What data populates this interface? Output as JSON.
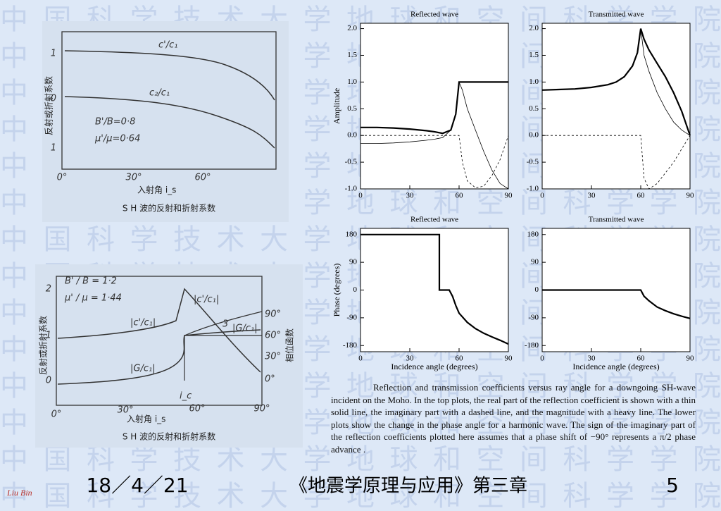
{
  "watermark": "中国科学技术大学地球和空间科学学院",
  "left_figures": [
    {
      "ylabel": "反射或折射系数",
      "yticks": [
        "1",
        "0",
        "1"
      ],
      "xticks": [
        "0°",
        "30°",
        "60°"
      ],
      "xlabel": "入射角 i_s",
      "curve_labels": [
        "c'/c₁",
        "c₂/c₁"
      ],
      "params": [
        "B'/B=0·8",
        "μ'/μ=0·64"
      ],
      "caption": "S H 波的反射和折射系数"
    },
    {
      "ylabel": "反射或折射系数",
      "y2label": "相位函数",
      "yticks": [
        "2",
        "1",
        "0"
      ],
      "y2ticks": [
        "90°",
        "60°",
        "30°",
        "0°"
      ],
      "xticks": [
        "0°",
        "30°",
        "60°",
        "90°"
      ],
      "xlabel": "入射角 i_s",
      "curve_labels": [
        "|c'/c₁|",
        "|c'/c₁|",
        "|G/c₁|",
        "|G/c₁|",
        "3",
        "i_c"
      ],
      "params": [
        "B' / B = 1·2",
        "μ' / μ = 1·44"
      ],
      "caption": "S H 波的反射和折射系数"
    }
  ],
  "chart_data": [
    {
      "type": "line",
      "title": "Reflected wave",
      "ylabel": "Amplitude",
      "x": [
        0,
        10,
        20,
        30,
        40,
        45,
        50,
        55,
        58,
        60,
        62,
        65,
        70,
        75,
        80,
        85,
        90
      ],
      "series": [
        {
          "style": "heavy",
          "color": "#000000",
          "values": [
            0.15,
            0.15,
            0.14,
            0.12,
            0.09,
            0.07,
            0.04,
            0.1,
            0.4,
            1,
            1,
            1,
            1,
            1,
            1,
            1,
            1
          ]
        },
        {
          "style": "thin",
          "color": "#000000",
          "values": [
            -0.15,
            -0.15,
            -0.14,
            -0.12,
            -0.09,
            -0.07,
            -0.04,
            0.1,
            0.4,
            1,
            0.85,
            0.5,
            0.1,
            -0.3,
            -0.65,
            -0.9,
            -1
          ]
        },
        {
          "style": "dashed",
          "color": "#000000",
          "values": [
            0,
            0,
            0,
            0,
            0,
            0,
            0,
            0,
            0,
            0,
            -0.5,
            -0.85,
            -0.98,
            -0.95,
            -0.75,
            -0.45,
            0
          ]
        }
      ],
      "xlim": [
        0,
        90
      ],
      "xticks": [
        0,
        30,
        60,
        90
      ],
      "ylim": [
        -1,
        2.1
      ],
      "yticks": [
        {
          "value": -1,
          "label": "-1.0"
        },
        {
          "value": -0.5,
          "label": "-0.5"
        },
        {
          "value": 0,
          "label": "0.0"
        },
        {
          "value": 0.5,
          "label": "0.5"
        },
        {
          "value": 1,
          "label": "1.0"
        },
        {
          "value": 1.5,
          "label": "1.5"
        },
        {
          "value": 2,
          "label": "2.0"
        }
      ]
    },
    {
      "type": "line",
      "title": "Transmitted wave",
      "x": [
        0,
        10,
        20,
        30,
        40,
        45,
        50,
        55,
        58,
        60,
        62,
        65,
        70,
        75,
        80,
        85,
        90
      ],
      "series": [
        {
          "style": "heavy",
          "color": "#000000",
          "values": [
            0.85,
            0.86,
            0.87,
            0.9,
            0.95,
            1.0,
            1.1,
            1.3,
            1.55,
            2.0,
            1.8,
            1.6,
            1.35,
            1.1,
            0.8,
            0.45,
            0
          ]
        },
        {
          "style": "thin",
          "color": "#000000",
          "values": [
            0.85,
            0.86,
            0.87,
            0.9,
            0.95,
            1.0,
            1.1,
            1.3,
            1.55,
            2.0,
            1.5,
            1.2,
            0.8,
            0.5,
            0.25,
            0.1,
            0
          ]
        },
        {
          "style": "dashed",
          "color": "#000000",
          "values": [
            0,
            0,
            0,
            0,
            0,
            0,
            0,
            0,
            0,
            0,
            -0.8,
            -1.0,
            -0.9,
            -0.7,
            -0.5,
            -0.25,
            0
          ]
        }
      ],
      "xlim": [
        0,
        90
      ],
      "xticks": [
        0,
        30,
        60,
        90
      ],
      "ylim": [
        -1,
        2.1
      ],
      "yticks": [
        {
          "value": -1,
          "label": "-1.0"
        },
        {
          "value": -0.5,
          "label": "-0.5"
        },
        {
          "value": 0,
          "label": "0.0"
        },
        {
          "value": 0.5,
          "label": "0.5"
        },
        {
          "value": 1,
          "label": "1.0"
        },
        {
          "value": 1.5,
          "label": "1.5"
        },
        {
          "value": 2,
          "label": "2.0"
        }
      ]
    },
    {
      "type": "line",
      "title": "Reflected wave",
      "ylabel": "Phase (degrees)",
      "xlabel": "Incidence angle (degrees)",
      "x": [
        0,
        10,
        20,
        30,
        40,
        48,
        48,
        50,
        54,
        56,
        58,
        60,
        65,
        70,
        75,
        80,
        85,
        90
      ],
      "series": [
        {
          "style": "heavy",
          "color": "#000000",
          "values": [
            180,
            180,
            180,
            180,
            180,
            180,
            0,
            0,
            0,
            -20,
            -50,
            -75,
            -105,
            -125,
            -140,
            -152,
            -163,
            -175
          ]
        }
      ],
      "xlim": [
        0,
        90
      ],
      "xticks": [
        0,
        30,
        60,
        90
      ],
      "ylim": [
        -200,
        200
      ],
      "yticks": [
        180,
        90,
        0,
        -90,
        -180
      ]
    },
    {
      "type": "line",
      "title": "Transmitted wave",
      "xlabel": "Incidence angle (degrees)",
      "x": [
        0,
        30,
        60,
        62,
        65,
        70,
        75,
        80,
        85,
        90
      ],
      "series": [
        {
          "style": "heavy",
          "color": "#000000",
          "values": [
            0,
            0,
            0,
            -20,
            -35,
            -55,
            -67,
            -77,
            -85,
            -92
          ]
        }
      ],
      "xlim": [
        0,
        90
      ],
      "xticks": [
        0,
        30,
        60,
        90
      ],
      "ylim": [
        -200,
        200
      ],
      "yticks": [
        180,
        90,
        0,
        -90,
        -180
      ]
    }
  ],
  "caption": "Reflection and transmission coefficients versus ray angle for a downgoing SH-wave incident on the Moho. In the top plots, the real part of the reflection coefficient is shown with a thin solid line, the imaginary part with a dashed line, and the magnitude with a heavy line. The lower plots show the change in the phase angle for a harmonic wave. The sign of the imaginary part of the reflection coefficients plotted here assumes that a phase shift of −90° represents a π/2 phase advance .",
  "footer": {
    "date": "18／4／21",
    "title": "《地震学原理与应用》第三章",
    "page": "5",
    "author": "Liu Bin"
  }
}
